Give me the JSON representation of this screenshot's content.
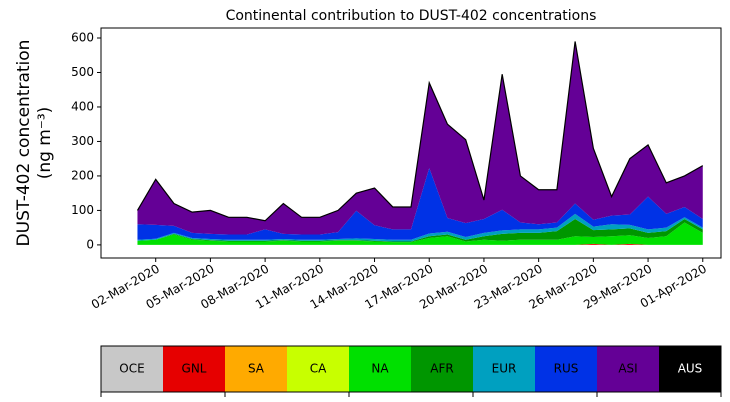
{
  "chart_data": {
    "type": "stacked_area",
    "title": "Continental contribution to DUST-402 concentrations",
    "ylabel": "DUST-402 concentration",
    "ylabel_unit": "(ng m⁻³)",
    "x": [
      "01-Mar-2020",
      "02-Mar-2020",
      "03-Mar-2020",
      "04-Mar-2020",
      "05-Mar-2020",
      "06-Mar-2020",
      "07-Mar-2020",
      "08-Mar-2020",
      "09-Mar-2020",
      "10-Mar-2020",
      "11-Mar-2020",
      "12-Mar-2020",
      "13-Mar-2020",
      "14-Mar-2020",
      "15-Mar-2020",
      "16-Mar-2020",
      "17-Mar-2020",
      "18-Mar-2020",
      "19-Mar-2020",
      "20-Mar-2020",
      "21-Mar-2020",
      "22-Mar-2020",
      "23-Mar-2020",
      "24-Mar-2020",
      "25-Mar-2020",
      "26-Mar-2020",
      "27-Mar-2020",
      "28-Mar-2020",
      "29-Mar-2020",
      "30-Mar-2020",
      "31-Mar-2020",
      "01-Apr-2020"
    ],
    "xlim": [
      "28-Feb-2020",
      "02-Apr-2020"
    ],
    "xticks": [
      "02-Mar-2020",
      "05-Mar-2020",
      "08-Mar-2020",
      "11-Mar-2020",
      "14-Mar-2020",
      "17-Mar-2020",
      "20-Mar-2020",
      "23-Mar-2020",
      "26-Mar-2020",
      "29-Mar-2020",
      "01-Apr-2020"
    ],
    "ylim": [
      -38,
      629
    ],
    "yticks": [
      0,
      100,
      200,
      300,
      400,
      500,
      600
    ],
    "outline_color": "#000000",
    "series": [
      {
        "name": "OCE",
        "color": "#c8c8c8",
        "values": [
          0,
          0,
          0,
          0,
          0,
          0,
          0,
          0,
          0,
          0,
          0,
          0,
          0,
          0,
          0,
          0,
          0,
          0,
          0,
          0,
          0,
          0,
          0,
          0,
          0,
          0,
          0,
          0,
          0,
          0,
          0,
          0
        ]
      },
      {
        "name": "GNL",
        "color": "#e60000",
        "values": [
          0,
          0,
          0,
          0,
          0,
          0,
          0,
          0,
          0,
          0,
          0,
          0,
          0,
          0,
          0,
          0,
          0,
          0,
          0,
          0,
          0,
          0,
          0,
          0,
          0,
          3,
          0,
          3,
          0,
          0,
          0,
          0
        ]
      },
      {
        "name": "SA",
        "color": "#ffaa00",
        "values": [
          0,
          0,
          0,
          0,
          0,
          0,
          0,
          0,
          0,
          0,
          0,
          0,
          0,
          0,
          0,
          0,
          0,
          0,
          0,
          0,
          0,
          0,
          0,
          0,
          0,
          0,
          0,
          0,
          0,
          0,
          0,
          0
        ]
      },
      {
        "name": "CA",
        "color": "#c8ff00",
        "values": [
          0,
          0,
          0,
          0,
          0,
          0,
          0,
          0,
          0,
          0,
          0,
          0,
          0,
          0,
          0,
          0,
          0,
          0,
          0,
          0,
          0,
          0,
          0,
          0,
          0,
          0,
          0,
          0,
          0,
          0,
          0,
          0
        ]
      },
      {
        "name": "NA",
        "color": "#00e000",
        "values": [
          12,
          15,
          30,
          15,
          12,
          10,
          10,
          10,
          12,
          10,
          10,
          12,
          12,
          10,
          8,
          8,
          20,
          25,
          10,
          15,
          12,
          15,
          15,
          15,
          25,
          20,
          25,
          25,
          20,
          25,
          65,
          35
        ]
      },
      {
        "name": "AFR",
        "color": "#009600",
        "values": [
          0,
          0,
          2,
          2,
          2,
          2,
          2,
          2,
          2,
          2,
          2,
          2,
          2,
          2,
          2,
          2,
          5,
          5,
          5,
          10,
          20,
          20,
          20,
          25,
          50,
          20,
          20,
          20,
          15,
          15,
          10,
          10
        ]
      },
      {
        "name": "EUR",
        "color": "#00a0c0",
        "values": [
          3,
          3,
          3,
          3,
          3,
          3,
          3,
          3,
          3,
          3,
          3,
          3,
          5,
          5,
          5,
          5,
          8,
          8,
          8,
          10,
          10,
          10,
          10,
          10,
          15,
          10,
          15,
          10,
          10,
          10,
          5,
          5
        ]
      },
      {
        "name": "RUS",
        "color": "#0032e6",
        "values": [
          45,
          40,
          20,
          15,
          15,
          15,
          15,
          30,
          15,
          15,
          15,
          20,
          80,
          40,
          30,
          30,
          190,
          40,
          40,
          40,
          60,
          20,
          15,
          15,
          30,
          20,
          25,
          30,
          95,
          40,
          30,
          25
        ]
      },
      {
        "name": "ASI",
        "color": "#640096",
        "values": [
          40,
          132,
          65,
          60,
          68,
          50,
          50,
          25,
          88,
          50,
          50,
          63,
          51,
          108,
          65,
          65,
          247,
          272,
          242,
          55,
          393,
          135,
          100,
          95,
          470,
          207,
          55,
          162,
          150,
          90,
          90,
          155
        ]
      },
      {
        "name": "AUS",
        "color": "#000000",
        "values": [
          0,
          0,
          0,
          0,
          0,
          0,
          0,
          0,
          0,
          0,
          0,
          0,
          0,
          0,
          0,
          0,
          0,
          0,
          0,
          0,
          0,
          0,
          0,
          0,
          0,
          0,
          0,
          0,
          0,
          0,
          0,
          0
        ]
      }
    ]
  }
}
